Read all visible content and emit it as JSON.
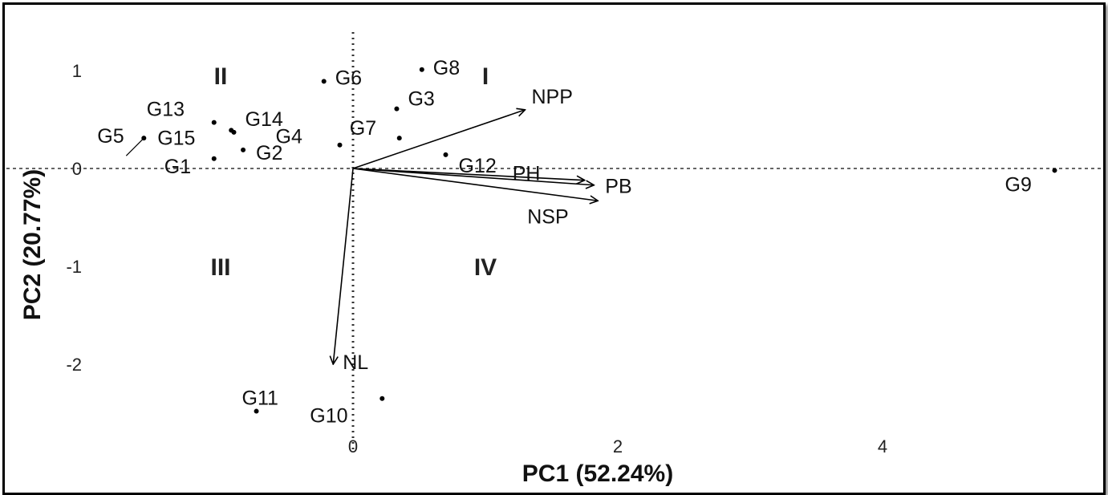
{
  "chart_data": {
    "type": "scatter",
    "subtype": "pca-biplot",
    "xlabel": "PC1 (52.24%)",
    "ylabel": "PC2 (20.77%)",
    "xlim": [
      -2.3,
      5.6
    ],
    "ylim": [
      -2.8,
      1.2
    ],
    "x_ticks": [
      0,
      2,
      4
    ],
    "y_ticks": [
      1,
      0,
      -1,
      -2
    ],
    "reference_lines": {
      "x": 0,
      "y": 0,
      "style": "dotted"
    },
    "quadrant_labels": [
      {
        "label": "I",
        "x": 1.0,
        "y": 0.95
      },
      {
        "label": "II",
        "x": -1.0,
        "y": 0.95
      },
      {
        "label": "III",
        "x": -1.0,
        "y": -1.0
      },
      {
        "label": "IV",
        "x": 1.0,
        "y": -1.0
      }
    ],
    "points": [
      {
        "label": "G1",
        "x": -1.05,
        "y": 0.1
      },
      {
        "label": "G2",
        "x": -0.83,
        "y": 0.19
      },
      {
        "label": "G3",
        "x": 0.33,
        "y": 0.61
      },
      {
        "label": "G4",
        "x": -0.1,
        "y": 0.24
      },
      {
        "label": "G5",
        "x": -1.58,
        "y": 0.31
      },
      {
        "label": "G6",
        "x": -0.22,
        "y": 0.89
      },
      {
        "label": "G7",
        "x": 0.35,
        "y": 0.31
      },
      {
        "label": "G8",
        "x": 0.52,
        "y": 1.01
      },
      {
        "label": "G9",
        "x": 5.3,
        "y": -0.02
      },
      {
        "label": "G10",
        "x": 0.22,
        "y": -2.35
      },
      {
        "label": "G11",
        "x": -0.73,
        "y": -2.48
      },
      {
        "label": "G12",
        "x": 0.7,
        "y": 0.14
      },
      {
        "label": "G13",
        "x": -1.05,
        "y": 0.47
      },
      {
        "label": "G14",
        "x": -0.9,
        "y": 0.37
      },
      {
        "label": "G15",
        "x": -0.92,
        "y": 0.39
      }
    ],
    "vectors": [
      {
        "label": "NPP",
        "x": 1.3,
        "y": 0.6
      },
      {
        "label": "PH",
        "x": 1.75,
        "y": -0.12
      },
      {
        "label": "PB",
        "x": 1.82,
        "y": -0.17
      },
      {
        "label": "NSP",
        "x": 1.85,
        "y": -0.33
      },
      {
        "label": "NL",
        "x": -0.15,
        "y": -2.0
      }
    ]
  }
}
